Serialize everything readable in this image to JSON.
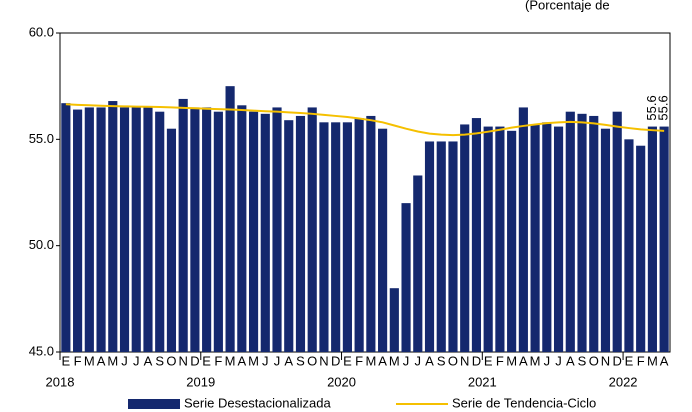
{
  "chart_data": {
    "type": "bar",
    "title": "(Porcentaje de",
    "categories": [
      "E",
      "F",
      "M",
      "A",
      "M",
      "J",
      "J",
      "A",
      "S",
      "O",
      "N",
      "D",
      "E",
      "F",
      "M",
      "A",
      "M",
      "J",
      "J",
      "A",
      "S",
      "O",
      "N",
      "D",
      "E",
      "F",
      "M",
      "A",
      "M",
      "J",
      "J",
      "A",
      "S",
      "O",
      "N",
      "D",
      "E",
      "F",
      "M",
      "A",
      "M",
      "J",
      "J",
      "A",
      "S",
      "O",
      "N",
      "D",
      "E",
      "F",
      "M",
      "A"
    ],
    "years": [
      "2018",
      "2019",
      "2020",
      "2021",
      "2022"
    ],
    "series": [
      {
        "name": "Serie Desestacionalizada",
        "color": "#14286e",
        "values": [
          56.7,
          56.4,
          56.5,
          56.5,
          56.8,
          56.5,
          56.5,
          56.5,
          56.3,
          55.5,
          56.9,
          56.5,
          56.5,
          56.3,
          57.5,
          56.6,
          56.3,
          56.2,
          56.5,
          55.9,
          56.1,
          56.5,
          55.8,
          55.8,
          55.8,
          56.0,
          56.1,
          55.5,
          48.0,
          52.0,
          53.3,
          54.9,
          54.9,
          54.9,
          55.7,
          56.0,
          55.6,
          55.6,
          55.4,
          56.5,
          55.7,
          55.8,
          55.6,
          56.3,
          56.2,
          56.1,
          55.5,
          56.3,
          55.0,
          54.7,
          55.6,
          55.6
        ],
        "value_labels": [
          null,
          null,
          null,
          null,
          null,
          null,
          null,
          null,
          null,
          null,
          null,
          null,
          null,
          null,
          null,
          null,
          null,
          null,
          null,
          null,
          null,
          null,
          null,
          null,
          null,
          null,
          null,
          null,
          null,
          null,
          null,
          null,
          null,
          null,
          null,
          null,
          null,
          null,
          null,
          null,
          null,
          null,
          null,
          null,
          null,
          null,
          null,
          null,
          null,
          null,
          "55.6",
          "55.6"
        ]
      },
      {
        "name": "Serie de Tendencia-Ciclo",
        "color": "#f5c000",
        "type": "line",
        "values": [
          56.65,
          56.62,
          56.6,
          56.58,
          56.56,
          56.55,
          56.54,
          56.53,
          56.52,
          56.5,
          56.48,
          56.46,
          56.44,
          56.42,
          56.4,
          56.38,
          56.35,
          56.32,
          56.3,
          56.27,
          56.24,
          56.2,
          56.15,
          56.1,
          56.05,
          55.98,
          55.9,
          55.8,
          55.65,
          55.5,
          55.37,
          55.27,
          55.22,
          55.2,
          55.22,
          55.28,
          55.36,
          55.45,
          55.55,
          55.63,
          55.7,
          55.76,
          55.8,
          55.82,
          55.8,
          55.75,
          55.68,
          55.6,
          55.53,
          55.47,
          55.43,
          55.4
        ]
      }
    ],
    "ylim": [
      45,
      60
    ],
    "yticks": [
      {
        "value": 45,
        "label": "45.0"
      },
      {
        "value": 50,
        "label": "50.0"
      },
      {
        "value": 55,
        "label": "55.0"
      },
      {
        "value": 60,
        "label": "60.0"
      }
    ],
    "legend": "bottom"
  }
}
